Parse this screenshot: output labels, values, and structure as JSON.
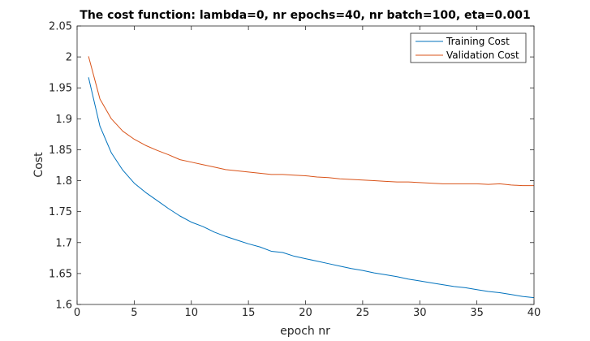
{
  "chart_data": {
    "type": "line",
    "title": "The cost function: lambda=0, nr epochs=40, nr batch=100, eta=0.001",
    "xlabel": "epoch nr",
    "ylabel": "Cost",
    "xlim": [
      0,
      40
    ],
    "ylim": [
      1.6,
      2.05
    ],
    "xticks": [
      0,
      5,
      10,
      15,
      20,
      25,
      30,
      35,
      40
    ],
    "xtick_labels": [
      "0",
      "5",
      "10",
      "15",
      "20",
      "25",
      "30",
      "35",
      "40"
    ],
    "yticks": [
      1.6,
      1.65,
      1.7,
      1.75,
      1.8,
      1.85,
      1.9,
      1.95,
      2,
      2.05
    ],
    "ytick_labels": [
      "1.6",
      "1.65",
      "1.7",
      "1.75",
      "1.8",
      "1.85",
      "1.9",
      "1.95",
      "2",
      "2.05"
    ],
    "grid": false,
    "legend_position": "top-right",
    "x": [
      1,
      2,
      3,
      4,
      5,
      6,
      7,
      8,
      9,
      10,
      11,
      12,
      13,
      14,
      15,
      16,
      17,
      18,
      19,
      20,
      21,
      22,
      23,
      24,
      25,
      26,
      27,
      28,
      29,
      30,
      31,
      32,
      33,
      34,
      35,
      36,
      37,
      38,
      39,
      40
    ],
    "series": [
      {
        "name": "Training Cost",
        "color": "#0072BD",
        "values": [
          1.967,
          1.888,
          1.845,
          1.817,
          1.796,
          1.781,
          1.768,
          1.755,
          1.743,
          1.733,
          1.726,
          1.717,
          1.71,
          1.704,
          1.698,
          1.693,
          1.686,
          1.684,
          1.678,
          1.674,
          1.67,
          1.666,
          1.662,
          1.658,
          1.655,
          1.651,
          1.648,
          1.645,
          1.641,
          1.638,
          1.635,
          1.632,
          1.629,
          1.627,
          1.624,
          1.621,
          1.619,
          1.616,
          1.613,
          1.611
        ]
      },
      {
        "name": "Validation Cost",
        "color": "#D95319",
        "values": [
          2.001,
          1.932,
          1.9,
          1.88,
          1.867,
          1.857,
          1.849,
          1.842,
          1.834,
          1.83,
          1.826,
          1.822,
          1.818,
          1.816,
          1.814,
          1.812,
          1.81,
          1.81,
          1.809,
          1.808,
          1.806,
          1.805,
          1.803,
          1.802,
          1.801,
          1.8,
          1.799,
          1.798,
          1.798,
          1.797,
          1.796,
          1.795,
          1.795,
          1.795,
          1.795,
          1.794,
          1.795,
          1.793,
          1.792,
          1.792
        ]
      }
    ]
  }
}
